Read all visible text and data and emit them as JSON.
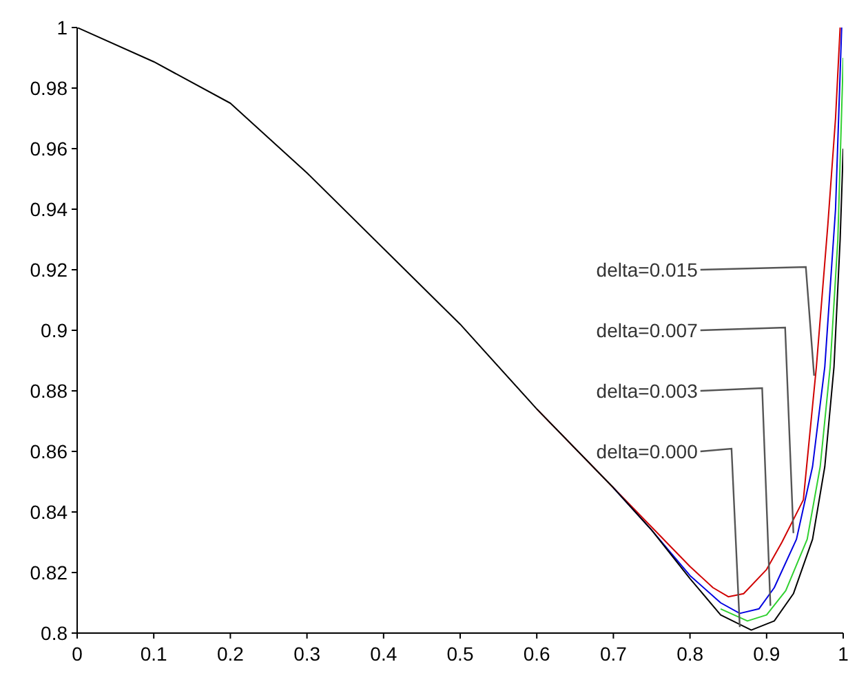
{
  "chart_data": {
    "type": "line",
    "xlim": [
      0,
      1
    ],
    "ylim": [
      0.8,
      1
    ],
    "xticks": [
      0,
      0.1,
      0.2,
      0.3,
      0.4,
      0.5,
      0.6,
      0.7,
      0.8,
      0.9,
      1
    ],
    "yticks": [
      0.8,
      0.82,
      0.84,
      0.86,
      0.88,
      0.9,
      0.92,
      0.94,
      0.96,
      0.98,
      1
    ],
    "grid": false,
    "legend": false,
    "marker": "none",
    "line_style": "solid",
    "series": [
      {
        "color": "#d00000",
        "x": [
          0.6,
          0.7,
          0.75,
          0.8,
          0.83,
          0.85,
          0.87,
          0.9,
          0.92,
          0.948,
          0.965,
          0.98,
          0.99,
          0.996
        ],
        "values": [
          0.874,
          0.848,
          0.835,
          0.822,
          0.815,
          0.812,
          0.813,
          0.821,
          0.83,
          0.844,
          0.888,
          0.935,
          0.97,
          1
        ]
      },
      {
        "color": "#0000e0",
        "x": [
          0.7,
          0.75,
          0.8,
          0.84,
          0.865,
          0.89,
          0.91,
          0.939,
          0.96,
          0.976,
          0.99,
          0.998
        ],
        "values": [
          0.848,
          0.834,
          0.819,
          0.81,
          0.8065,
          0.808,
          0.815,
          0.831,
          0.855,
          0.888,
          0.94,
          1
        ]
      },
      {
        "color": "#30d030",
        "x": [
          0.84,
          0.875,
          0.9,
          0.925,
          0.953,
          0.97,
          0.983,
          0.993,
          1
        ],
        "values": [
          0.808,
          0.804,
          0.806,
          0.814,
          0.831,
          0.855,
          0.888,
          0.93,
          0.99
        ]
      },
      {
        "color": "#000000",
        "x": [
          0,
          0.1,
          0.2,
          0.3,
          0.4,
          0.5,
          0.6,
          0.7,
          0.75,
          0.8,
          0.84,
          0.88,
          0.91,
          0.935,
          0.96,
          0.976,
          0.988,
          0.996,
          1
        ],
        "values": [
          1,
          0.9887,
          0.975,
          0.952,
          0.927,
          0.902,
          0.874,
          0.848,
          0.834,
          0.818,
          0.806,
          0.801,
          0.804,
          0.813,
          0.831,
          0.855,
          0.888,
          0.93,
          0.96
        ]
      }
    ],
    "annotations": [
      {
        "text": "delta=0.015",
        "x": 0.962,
        "y": 0.885
      },
      {
        "text": "delta=0.007",
        "x": 0.935,
        "y": 0.833
      },
      {
        "text": "delta=0.003",
        "x": 0.905,
        "y": 0.809
      },
      {
        "text": "delta=0.000",
        "x": 0.865,
        "y": 0.802
      }
    ]
  }
}
